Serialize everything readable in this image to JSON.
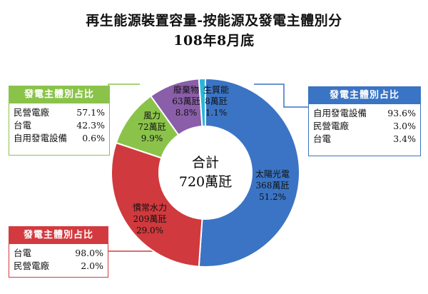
{
  "title_line1": "再生能源裝置容量-按能源及發電主體別分",
  "title_line2": "108年8月底",
  "center_label": {
    "line1": "合計",
    "line2": "720萬瓩"
  },
  "chart_data": {
    "type": "pie",
    "donut": true,
    "categories": [
      "太陽光電",
      "慣常水力",
      "風力",
      "廢棄物",
      "生質能"
    ],
    "values": [
      368,
      209,
      72,
      63,
      8
    ],
    "unit": "萬瓩",
    "percents": [
      "51.2%",
      "29.0%",
      "9.9%",
      "8.8%",
      "1.1%"
    ],
    "value_labels": [
      "368萬瓩",
      "209萬瓩",
      "72萬瓩",
      "63萬瓩",
      "8萬瓩"
    ],
    "colors": [
      "#3b74c4",
      "#d0393d",
      "#8bc34a",
      "#8a5ea8",
      "#26b8d8"
    ]
  },
  "legend_boxes": {
    "solar": {
      "title": "發電主體別占比",
      "color": "#3a74c4",
      "rows": [
        {
          "label": "自用發電設備",
          "value": "93.6%"
        },
        {
          "label": "民營電廠",
          "value": "3.0%"
        },
        {
          "label": "台電",
          "value": "3.4%"
        }
      ]
    },
    "wind": {
      "title": "發電主體別占比",
      "color": "#8bc34a",
      "rows": [
        {
          "label": "民營電廠",
          "value": "57.1%"
        },
        {
          "label": "台電",
          "value": "42.3%"
        },
        {
          "label": "自用發電設備",
          "value": "0.6%"
        }
      ]
    },
    "hydro": {
      "title": "發電主體別占比",
      "color": "#d33a3f",
      "rows": [
        {
          "label": "台電",
          "value": "98.0%"
        },
        {
          "label": "民營電廠",
          "value": "2.0%"
        }
      ]
    }
  }
}
